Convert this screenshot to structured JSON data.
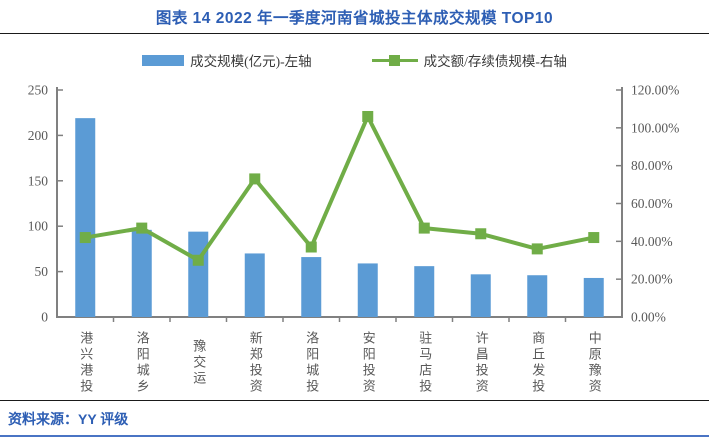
{
  "title": "图表 14 2022 年一季度河南省城投主体成交规模 TOP10",
  "source": "资料来源：YY 评级",
  "colors": {
    "bar": "#5B9BD5",
    "line": "#70AD47",
    "title_blue": "#2d5eb4",
    "axis_line": "#808080",
    "axis_text": "#595959"
  },
  "legend": [
    {
      "label": "成交规模(亿元)-左轴",
      "swatch": "bar-swatch"
    },
    {
      "label": "成交额/存续债规模-右轴",
      "swatch": "line-swatch"
    }
  ],
  "chart_data": {
    "type": "bar",
    "subtype": "combo bar + line, dual axis",
    "title": "图表 14 2022 年一季度河南省城投主体成交规模 TOP10",
    "categories": [
      "港兴港投",
      "洛阳城乡",
      "豫交运",
      "新郑投资",
      "洛阳城投",
      "安阳投资",
      "驻马店投",
      "许昌投资",
      "商丘发投",
      "中原豫资"
    ],
    "series": [
      {
        "name": "成交规模(亿元)-左轴",
        "type": "bar",
        "axis": "left",
        "values": [
          219,
          96,
          94,
          70,
          66,
          59,
          56,
          47,
          46,
          43
        ]
      },
      {
        "name": "成交额/存续债规模-右轴",
        "type": "line",
        "axis": "right",
        "values": [
          42,
          47,
          30,
          73,
          37,
          106,
          47,
          44,
          36,
          42
        ],
        "unit": "%"
      }
    ],
    "left_axis": {
      "min": 0,
      "max": 250,
      "step": 50,
      "ticks": [
        "0",
        "50",
        "100",
        "150",
        "200",
        "250"
      ]
    },
    "right_axis": {
      "min": 0,
      "max": 120,
      "step": 20,
      "ticks": [
        "0.00%",
        "20.00%",
        "40.00%",
        "60.00%",
        "80.00%",
        "100.00%",
        "120.00%"
      ]
    },
    "grid": false,
    "legend_position": "top"
  }
}
